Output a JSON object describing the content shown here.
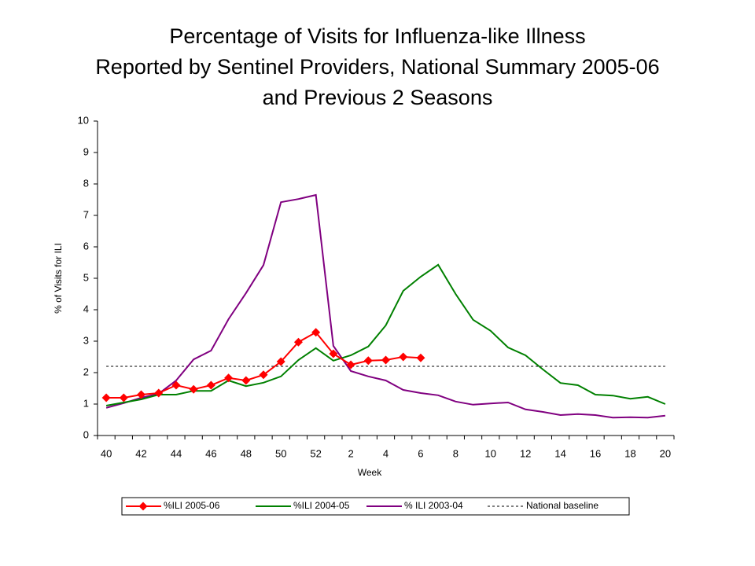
{
  "chart_data": {
    "type": "line",
    "title": [
      "Percentage of Visits for Influenza-like Illness",
      "Reported by Sentinel Providers, National Summary 2005-06",
      "and Previous 2 Seasons"
    ],
    "x_label": "Week",
    "y_label": "% of Visits for ILI",
    "categories": [
      40,
      null,
      42,
      null,
      44,
      null,
      46,
      null,
      48,
      null,
      50,
      null,
      52,
      null,
      2,
      null,
      4,
      null,
      6,
      null,
      8,
      null,
      10,
      null,
      12,
      null,
      14,
      null,
      16,
      null,
      18,
      null,
      20
    ],
    "ylim": [
      0,
      10
    ],
    "yticks": [
      0,
      1,
      2,
      3,
      4,
      5,
      6,
      7,
      8,
      9,
      10
    ],
    "series": [
      {
        "name": "%ILI 2005-06",
        "color": "#ff0000",
        "marker": "diamond",
        "values": [
          1.2,
          1.2,
          1.3,
          1.35,
          1.6,
          1.47,
          1.6,
          1.83,
          1.75,
          1.93,
          2.35,
          2.97,
          3.28,
          2.6,
          2.25,
          2.38,
          2.4,
          2.5,
          2.47,
          null,
          null,
          null,
          null,
          null,
          null,
          null,
          null,
          null,
          null,
          null,
          null,
          null,
          null
        ]
      },
      {
        "name": "%ILI 2004-05",
        "color": "#008000",
        "values": [
          0.95,
          1.05,
          1.15,
          1.3,
          1.3,
          1.42,
          1.42,
          1.75,
          1.57,
          1.68,
          1.88,
          2.4,
          2.78,
          2.38,
          2.55,
          2.83,
          3.5,
          4.6,
          5.05,
          5.43,
          4.5,
          3.68,
          3.33,
          2.8,
          2.55,
          2.1,
          1.67,
          1.6,
          1.3,
          1.27,
          1.17,
          1.23,
          1.0
        ]
      },
      {
        "name": "% ILI 2003-04",
        "color": "#800080",
        "values": [
          0.88,
          1.03,
          1.2,
          1.33,
          1.75,
          2.42,
          2.7,
          3.7,
          4.53,
          5.42,
          7.42,
          7.52,
          7.65,
          2.85,
          2.05,
          1.88,
          1.75,
          1.45,
          1.35,
          1.28,
          1.08,
          0.98,
          1.02,
          1.05,
          0.83,
          0.75,
          0.65,
          0.68,
          0.65,
          0.57,
          0.58,
          0.57,
          0.63
        ]
      }
    ],
    "baseline": {
      "name": "National baseline",
      "value": 2.2,
      "color": "#000000"
    }
  }
}
